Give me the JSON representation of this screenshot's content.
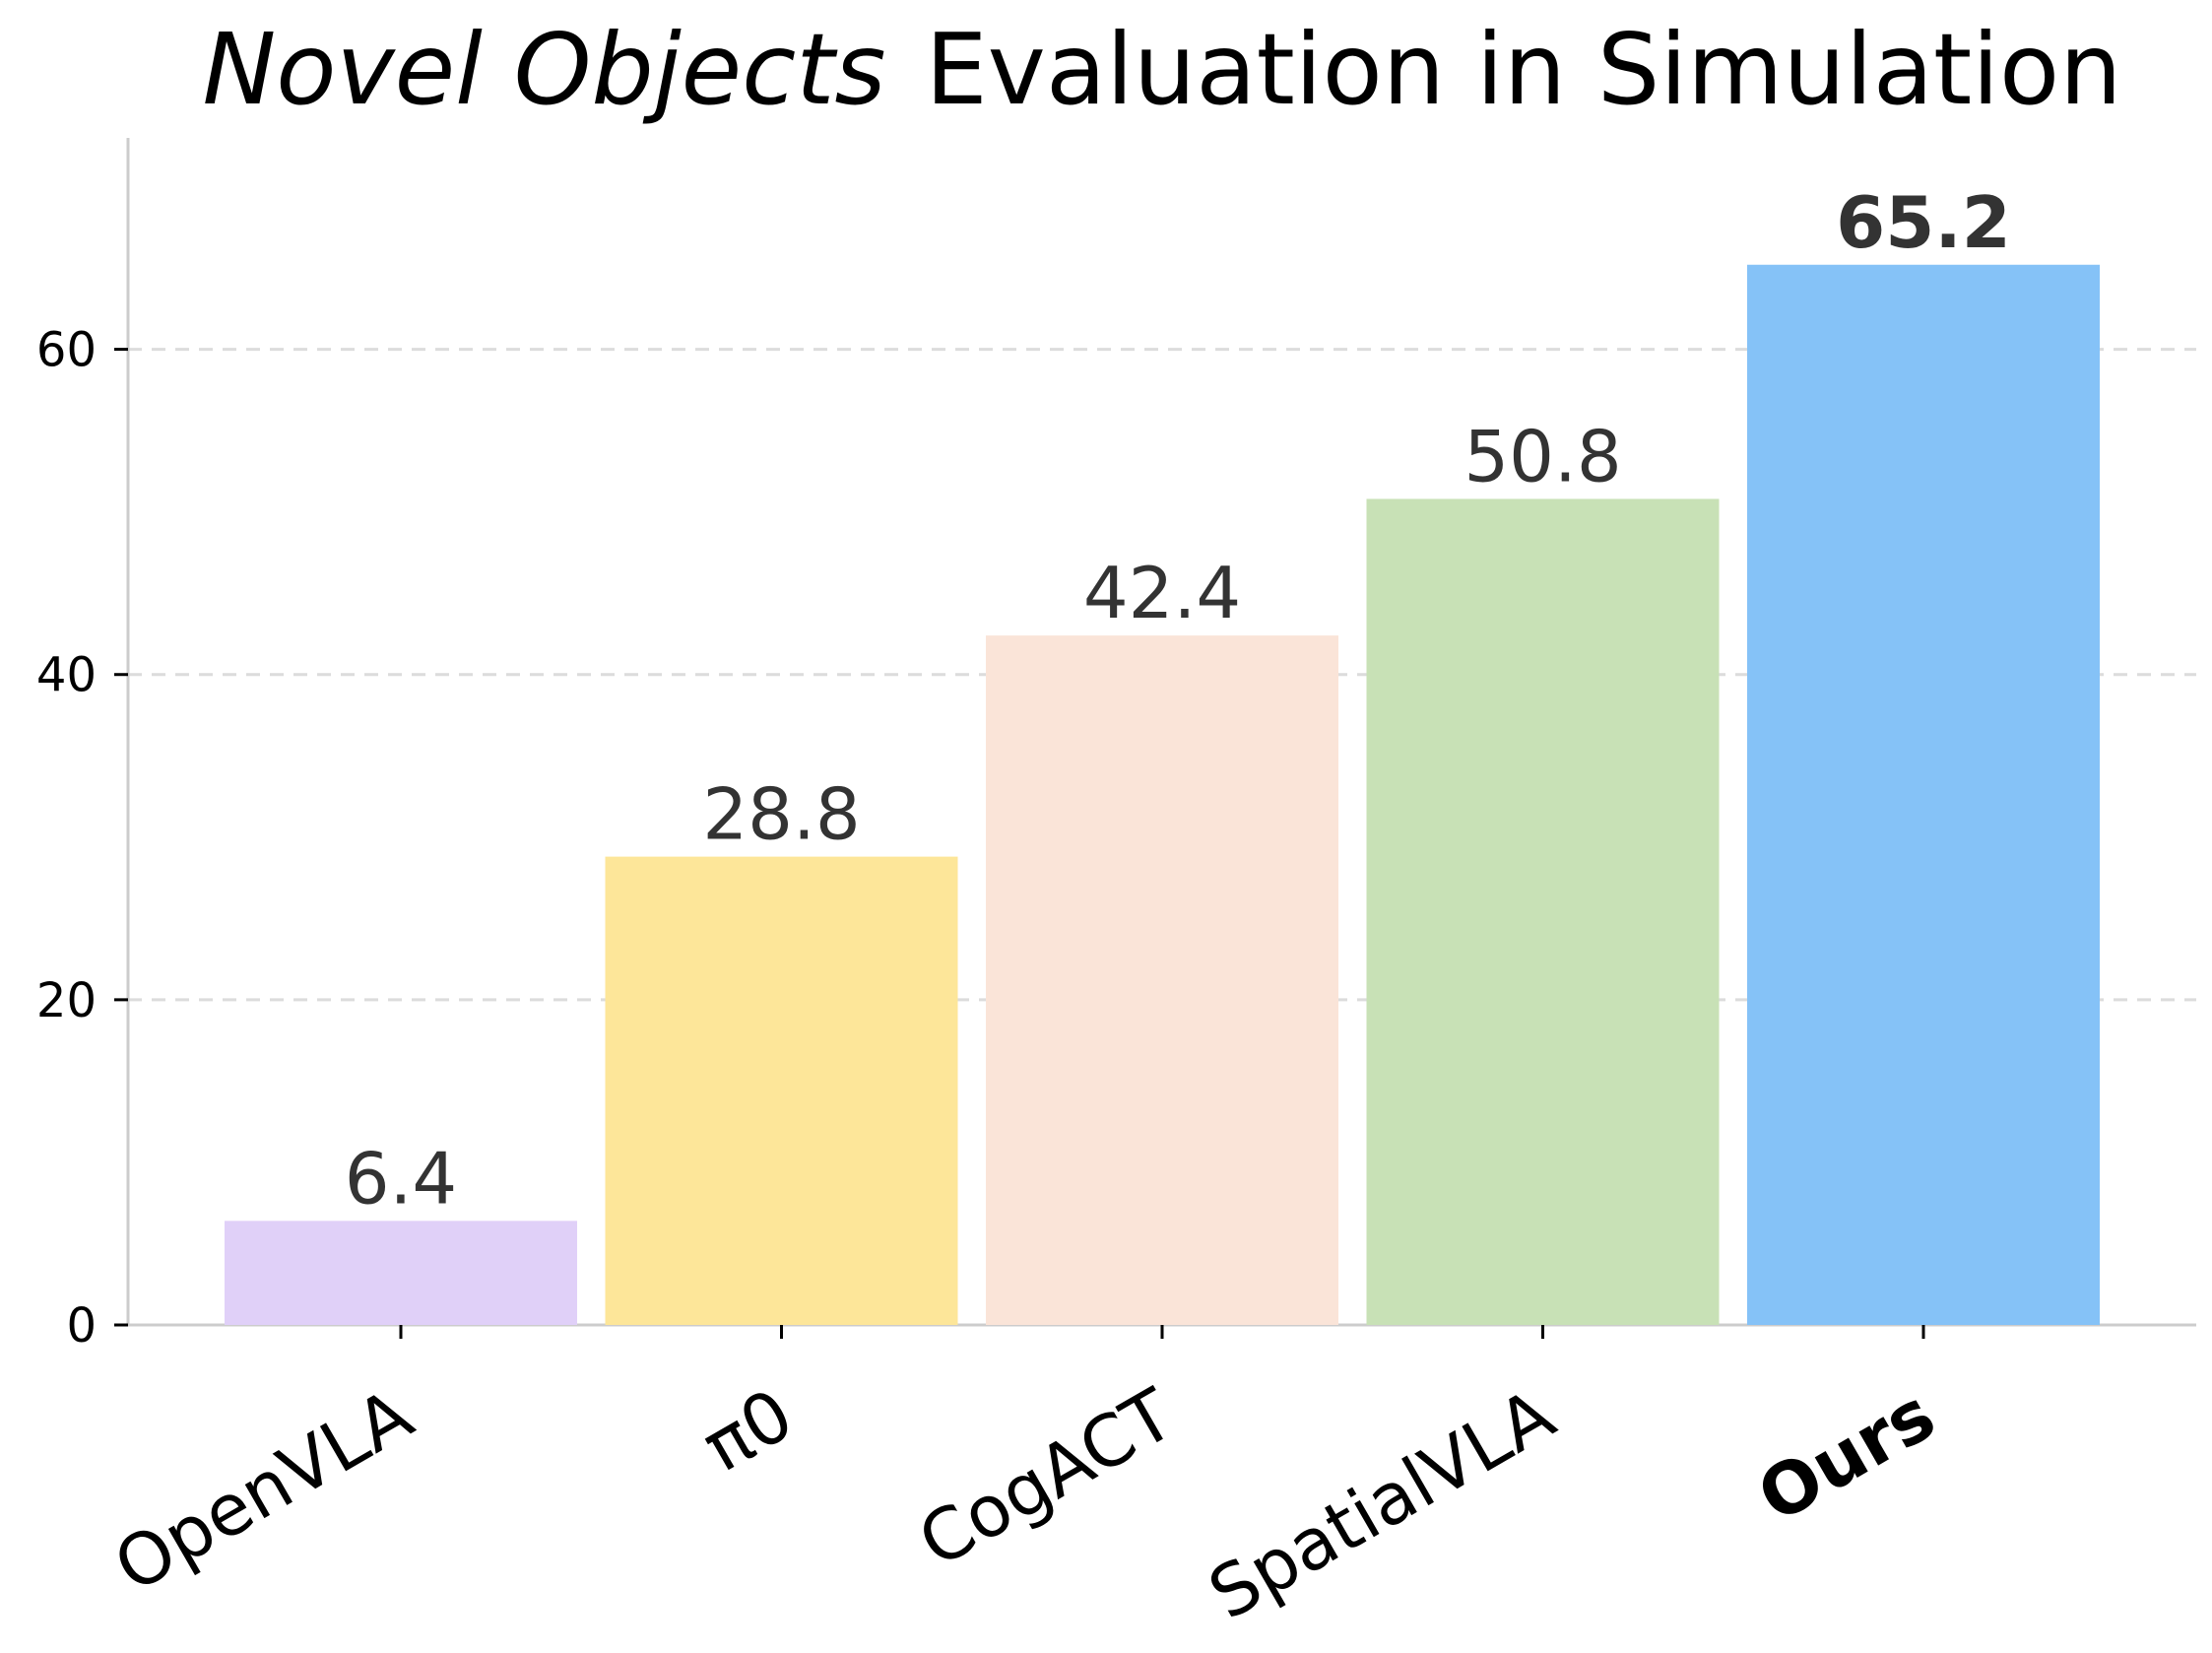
{
  "chart_data": {
    "type": "bar",
    "title": {
      "italic_part": "Novel Objects",
      "rest": "Evaluation in Simulation"
    },
    "categories": [
      "OpenVLA",
      "π0",
      "CogACT",
      "SpatialVLA",
      "Ours"
    ],
    "values": [
      6.4,
      28.8,
      42.4,
      50.8,
      65.2
    ],
    "value_labels": [
      "6.4",
      "28.8",
      "42.4",
      "50.8",
      "65.2"
    ],
    "highlight_index": 4,
    "colors": [
      "#e0d0f8",
      "#fde699",
      "#fae4d8",
      "#c8e1b6",
      "#85c2f7"
    ],
    "yticks": [
      0,
      20,
      40,
      60
    ],
    "ytick_labels": [
      "0",
      "20",
      "40",
      "60"
    ],
    "ylim": [
      0,
      73
    ],
    "xlabel": "",
    "ylabel": "",
    "grid": "y-dashed",
    "legend": "none"
  }
}
